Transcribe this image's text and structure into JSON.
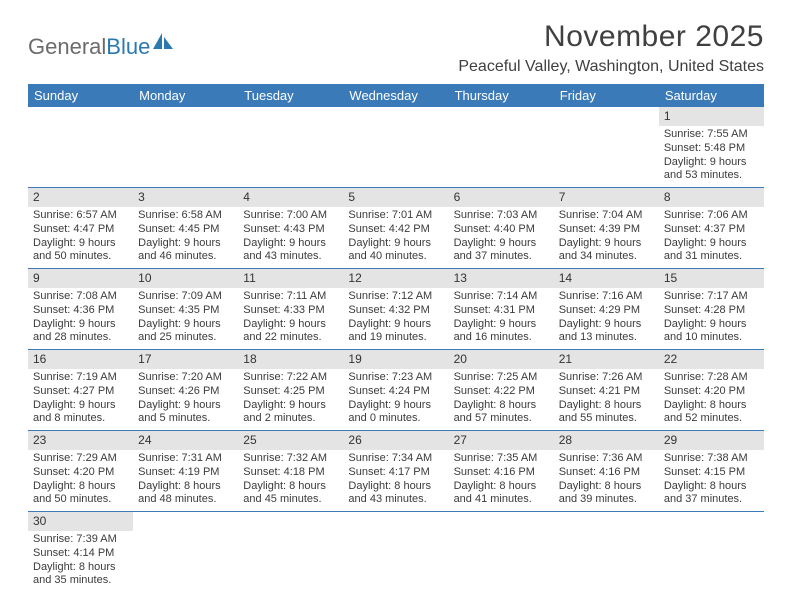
{
  "logo": {
    "part1": "General",
    "part2": "Blue"
  },
  "title": "November 2025",
  "location": "Peaceful Valley, Washington, United States",
  "colors": {
    "header_bg": "#3a7ab8",
    "header_text": "#ffffff",
    "daynum_bg": "#e4e4e4",
    "border": "#3a7ab8",
    "text": "#3b3b3b",
    "logo_gray": "#6b6b6b",
    "logo_blue": "#2a7ab0"
  },
  "day_names": [
    "Sunday",
    "Monday",
    "Tuesday",
    "Wednesday",
    "Thursday",
    "Friday",
    "Saturday"
  ],
  "weeks": [
    [
      null,
      null,
      null,
      null,
      null,
      null,
      {
        "n": "1",
        "sr": "Sunrise: 7:55 AM",
        "ss": "Sunset: 5:48 PM",
        "dl1": "Daylight: 9 hours",
        "dl2": "and 53 minutes."
      }
    ],
    [
      {
        "n": "2",
        "sr": "Sunrise: 6:57 AM",
        "ss": "Sunset: 4:47 PM",
        "dl1": "Daylight: 9 hours",
        "dl2": "and 50 minutes."
      },
      {
        "n": "3",
        "sr": "Sunrise: 6:58 AM",
        "ss": "Sunset: 4:45 PM",
        "dl1": "Daylight: 9 hours",
        "dl2": "and 46 minutes."
      },
      {
        "n": "4",
        "sr": "Sunrise: 7:00 AM",
        "ss": "Sunset: 4:43 PM",
        "dl1": "Daylight: 9 hours",
        "dl2": "and 43 minutes."
      },
      {
        "n": "5",
        "sr": "Sunrise: 7:01 AM",
        "ss": "Sunset: 4:42 PM",
        "dl1": "Daylight: 9 hours",
        "dl2": "and 40 minutes."
      },
      {
        "n": "6",
        "sr": "Sunrise: 7:03 AM",
        "ss": "Sunset: 4:40 PM",
        "dl1": "Daylight: 9 hours",
        "dl2": "and 37 minutes."
      },
      {
        "n": "7",
        "sr": "Sunrise: 7:04 AM",
        "ss": "Sunset: 4:39 PM",
        "dl1": "Daylight: 9 hours",
        "dl2": "and 34 minutes."
      },
      {
        "n": "8",
        "sr": "Sunrise: 7:06 AM",
        "ss": "Sunset: 4:37 PM",
        "dl1": "Daylight: 9 hours",
        "dl2": "and 31 minutes."
      }
    ],
    [
      {
        "n": "9",
        "sr": "Sunrise: 7:08 AM",
        "ss": "Sunset: 4:36 PM",
        "dl1": "Daylight: 9 hours",
        "dl2": "and 28 minutes."
      },
      {
        "n": "10",
        "sr": "Sunrise: 7:09 AM",
        "ss": "Sunset: 4:35 PM",
        "dl1": "Daylight: 9 hours",
        "dl2": "and 25 minutes."
      },
      {
        "n": "11",
        "sr": "Sunrise: 7:11 AM",
        "ss": "Sunset: 4:33 PM",
        "dl1": "Daylight: 9 hours",
        "dl2": "and 22 minutes."
      },
      {
        "n": "12",
        "sr": "Sunrise: 7:12 AM",
        "ss": "Sunset: 4:32 PM",
        "dl1": "Daylight: 9 hours",
        "dl2": "and 19 minutes."
      },
      {
        "n": "13",
        "sr": "Sunrise: 7:14 AM",
        "ss": "Sunset: 4:31 PM",
        "dl1": "Daylight: 9 hours",
        "dl2": "and 16 minutes."
      },
      {
        "n": "14",
        "sr": "Sunrise: 7:16 AM",
        "ss": "Sunset: 4:29 PM",
        "dl1": "Daylight: 9 hours",
        "dl2": "and 13 minutes."
      },
      {
        "n": "15",
        "sr": "Sunrise: 7:17 AM",
        "ss": "Sunset: 4:28 PM",
        "dl1": "Daylight: 9 hours",
        "dl2": "and 10 minutes."
      }
    ],
    [
      {
        "n": "16",
        "sr": "Sunrise: 7:19 AM",
        "ss": "Sunset: 4:27 PM",
        "dl1": "Daylight: 9 hours",
        "dl2": "and 8 minutes."
      },
      {
        "n": "17",
        "sr": "Sunrise: 7:20 AM",
        "ss": "Sunset: 4:26 PM",
        "dl1": "Daylight: 9 hours",
        "dl2": "and 5 minutes."
      },
      {
        "n": "18",
        "sr": "Sunrise: 7:22 AM",
        "ss": "Sunset: 4:25 PM",
        "dl1": "Daylight: 9 hours",
        "dl2": "and 2 minutes."
      },
      {
        "n": "19",
        "sr": "Sunrise: 7:23 AM",
        "ss": "Sunset: 4:24 PM",
        "dl1": "Daylight: 9 hours",
        "dl2": "and 0 minutes."
      },
      {
        "n": "20",
        "sr": "Sunrise: 7:25 AM",
        "ss": "Sunset: 4:22 PM",
        "dl1": "Daylight: 8 hours",
        "dl2": "and 57 minutes."
      },
      {
        "n": "21",
        "sr": "Sunrise: 7:26 AM",
        "ss": "Sunset: 4:21 PM",
        "dl1": "Daylight: 8 hours",
        "dl2": "and 55 minutes."
      },
      {
        "n": "22",
        "sr": "Sunrise: 7:28 AM",
        "ss": "Sunset: 4:20 PM",
        "dl1": "Daylight: 8 hours",
        "dl2": "and 52 minutes."
      }
    ],
    [
      {
        "n": "23",
        "sr": "Sunrise: 7:29 AM",
        "ss": "Sunset: 4:20 PM",
        "dl1": "Daylight: 8 hours",
        "dl2": "and 50 minutes."
      },
      {
        "n": "24",
        "sr": "Sunrise: 7:31 AM",
        "ss": "Sunset: 4:19 PM",
        "dl1": "Daylight: 8 hours",
        "dl2": "and 48 minutes."
      },
      {
        "n": "25",
        "sr": "Sunrise: 7:32 AM",
        "ss": "Sunset: 4:18 PM",
        "dl1": "Daylight: 8 hours",
        "dl2": "and 45 minutes."
      },
      {
        "n": "26",
        "sr": "Sunrise: 7:34 AM",
        "ss": "Sunset: 4:17 PM",
        "dl1": "Daylight: 8 hours",
        "dl2": "and 43 minutes."
      },
      {
        "n": "27",
        "sr": "Sunrise: 7:35 AM",
        "ss": "Sunset: 4:16 PM",
        "dl1": "Daylight: 8 hours",
        "dl2": "and 41 minutes."
      },
      {
        "n": "28",
        "sr": "Sunrise: 7:36 AM",
        "ss": "Sunset: 4:16 PM",
        "dl1": "Daylight: 8 hours",
        "dl2": "and 39 minutes."
      },
      {
        "n": "29",
        "sr": "Sunrise: 7:38 AM",
        "ss": "Sunset: 4:15 PM",
        "dl1": "Daylight: 8 hours",
        "dl2": "and 37 minutes."
      }
    ],
    [
      {
        "n": "30",
        "sr": "Sunrise: 7:39 AM",
        "ss": "Sunset: 4:14 PM",
        "dl1": "Daylight: 8 hours",
        "dl2": "and 35 minutes."
      },
      null,
      null,
      null,
      null,
      null,
      null
    ]
  ]
}
